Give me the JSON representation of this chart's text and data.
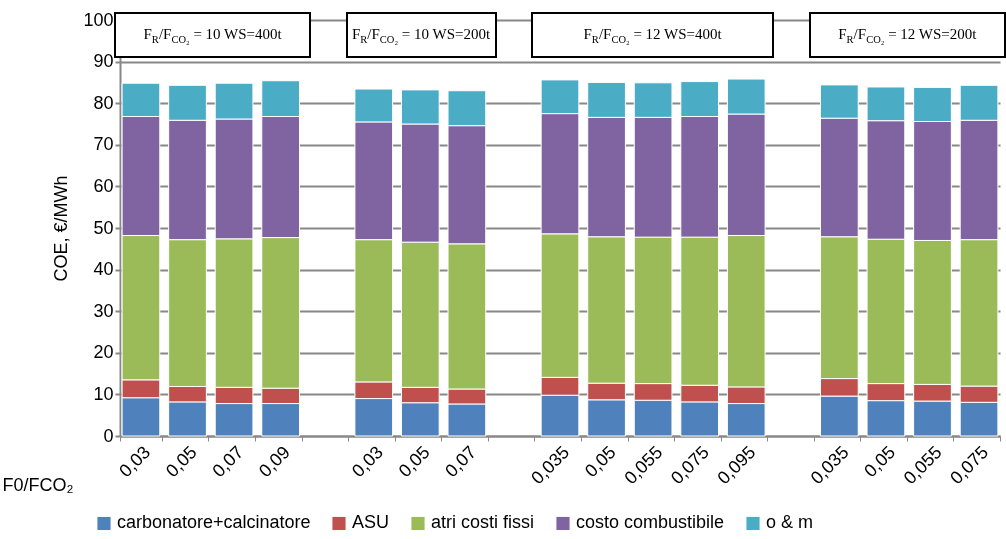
{
  "chart_data": {
    "type": "bar",
    "stacked": true,
    "xlabel": "F0/FCO₂",
    "ylabel": "COE, €/MWh",
    "categories": [
      "0,03",
      "0,05",
      "0,07",
      "0,09",
      null,
      "0,03",
      "0,05",
      "0,07",
      null,
      "0,035",
      "0,05",
      "0,055",
      "0,075",
      "0,095",
      null,
      "0,035",
      "0,05",
      "0,055",
      "0,075"
    ],
    "series": [
      {
        "name": "carbonatore+calcinatore",
        "color": "#4f81bd",
        "values": [
          9.2,
          8.2,
          7.8,
          7.8,
          null,
          9.0,
          8.0,
          7.7,
          null,
          9.8,
          8.7,
          8.6,
          8.2,
          7.8,
          null,
          9.6,
          8.5,
          8.4,
          8.1
        ]
      },
      {
        "name": "ASU",
        "color": "#c0504d",
        "values": [
          4.3,
          3.7,
          3.9,
          3.7,
          null,
          4.0,
          3.7,
          3.6,
          null,
          4.3,
          4.0,
          4.0,
          4.0,
          4.0,
          null,
          4.2,
          4.1,
          4.0,
          3.9
        ]
      },
      {
        "name": "atri costi fissi",
        "color": "#9bbb59",
        "values": [
          34.7,
          35.3,
          35.7,
          36.2,
          null,
          34.2,
          34.9,
          34.9,
          null,
          34.5,
          35.2,
          35.2,
          35.6,
          36.4,
          null,
          34.1,
          34.7,
          34.6,
          35.2
        ]
      },
      {
        "name": "costo combustibile",
        "color": "#8064a2",
        "values": [
          28.6,
          28.7,
          28.8,
          29.1,
          null,
          28.3,
          28.4,
          28.4,
          null,
          28.9,
          28.7,
          28.8,
          29.0,
          29.2,
          null,
          28.5,
          28.5,
          28.6,
          28.7
        ]
      },
      {
        "name": "o & m",
        "color": "#4bacc6",
        "values": [
          8.0,
          8.4,
          8.6,
          8.6,
          null,
          7.9,
          8.2,
          8.4,
          null,
          8.1,
          8.4,
          8.3,
          8.4,
          8.4,
          null,
          8.0,
          8.1,
          8.2,
          8.4
        ]
      }
    ],
    "ylim": [
      0,
      100
    ],
    "yticks": [
      0,
      10,
      20,
      30,
      40,
      50,
      60,
      70,
      80,
      90,
      100
    ],
    "grid": "y",
    "legend": "bottom",
    "annotations": [
      "F$_{R}$/F$_{CO₂}$ = 10 WS=400t",
      "F$_{R}$/F$_{CO₂}$ = 10 WS=200t",
      "F$_{R}$/F$_{CO₂}$ = 12 WS=400t",
      "F$_{R}$/F$_{CO₂}$ = 12 WS=200t"
    ]
  }
}
